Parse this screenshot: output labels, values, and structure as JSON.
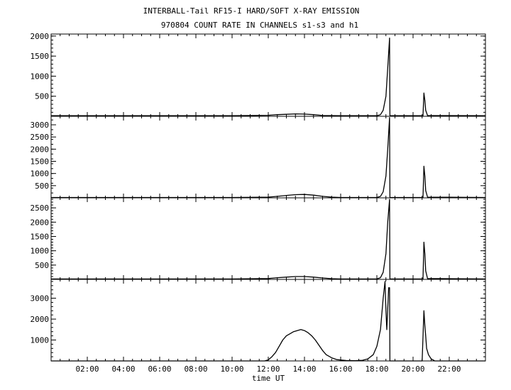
{
  "chart_data": {
    "type": "line",
    "title": "INTERBALL-Tail RF15-I HARD/SOFT X-RAY EMISSION",
    "subtitle": "970804  COUNT RATE IN CHANNELS s1-s3 and h1",
    "xlabel": "time UT",
    "x_unit": "hours UT",
    "xlim": [
      0,
      24
    ],
    "x_ticks": [
      {
        "value": 2,
        "label": "02:00"
      },
      {
        "value": 4,
        "label": "04:00"
      },
      {
        "value": 6,
        "label": "06:00"
      },
      {
        "value": 8,
        "label": "08:00"
      },
      {
        "value": 10,
        "label": "10:00"
      },
      {
        "value": 12,
        "label": "12:00"
      },
      {
        "value": 14,
        "label": "14:00"
      },
      {
        "value": 16,
        "label": "16:00"
      },
      {
        "value": 18,
        "label": "18:00"
      },
      {
        "value": 20,
        "label": "20:00"
      },
      {
        "value": 22,
        "label": "22:00"
      }
    ],
    "panels": [
      {
        "ylim": [
          0,
          2050
        ],
        "y_ticks": [
          500,
          1000,
          1500,
          2000
        ],
        "series": [
          {
            "points": [
              [
                0,
                15
              ],
              [
                10,
                15
              ],
              [
                12.0,
                25
              ],
              [
                12.5,
                40
              ],
              [
                13.0,
                50
              ],
              [
                13.5,
                60
              ],
              [
                14.0,
                55
              ],
              [
                14.5,
                40
              ],
              [
                15.0,
                20
              ],
              [
                16,
                15
              ],
              [
                18.0,
                15
              ],
              [
                18.2,
                40
              ],
              [
                18.35,
                150
              ],
              [
                18.5,
                500
              ],
              [
                18.6,
                1200
              ],
              [
                18.7,
                1950
              ],
              [
                18.72,
                15
              ],
              [
                20.5,
                15
              ],
              [
                20.55,
                15
              ],
              [
                20.6,
                580
              ],
              [
                20.65,
                400
              ],
              [
                20.7,
                150
              ],
              [
                20.8,
                20
              ],
              [
                24,
                15
              ]
            ]
          }
        ]
      },
      {
        "ylim": [
          0,
          3350
        ],
        "y_ticks": [
          500,
          1000,
          1500,
          2000,
          2500,
          3000
        ],
        "series": [
          {
            "points": [
              [
                0,
                15
              ],
              [
                10,
                15
              ],
              [
                12.0,
                30
              ],
              [
                12.5,
                60
              ],
              [
                13.0,
                100
              ],
              [
                13.5,
                130
              ],
              [
                14.0,
                140
              ],
              [
                14.5,
                110
              ],
              [
                15.0,
                60
              ],
              [
                15.5,
                30
              ],
              [
                16,
                15
              ],
              [
                18.0,
                15
              ],
              [
                18.2,
                60
              ],
              [
                18.35,
                250
              ],
              [
                18.5,
                900
              ],
              [
                18.6,
                2000
              ],
              [
                18.7,
                3300
              ],
              [
                18.72,
                15
              ],
              [
                20.5,
                15
              ],
              [
                20.55,
                15
              ],
              [
                20.6,
                1300
              ],
              [
                20.65,
                900
              ],
              [
                20.7,
                300
              ],
              [
                20.8,
                30
              ],
              [
                24,
                15
              ]
            ]
          }
        ]
      },
      {
        "ylim": [
          0,
          2850
        ],
        "y_ticks": [
          500,
          1000,
          1500,
          2000,
          2500
        ],
        "series": [
          {
            "points": [
              [
                0,
                15
              ],
              [
                10,
                15
              ],
              [
                12.0,
                30
              ],
              [
                12.5,
                60
              ],
              [
                13.0,
                80
              ],
              [
                13.5,
                100
              ],
              [
                14.0,
                100
              ],
              [
                14.5,
                80
              ],
              [
                15.0,
                50
              ],
              [
                15.5,
                25
              ],
              [
                16,
                15
              ],
              [
                18.0,
                15
              ],
              [
                18.2,
                60
              ],
              [
                18.35,
                250
              ],
              [
                18.5,
                900
              ],
              [
                18.6,
                2000
              ],
              [
                18.7,
                2800
              ],
              [
                18.72,
                15
              ],
              [
                20.5,
                15
              ],
              [
                20.55,
                15
              ],
              [
                20.6,
                1300
              ],
              [
                20.65,
                900
              ],
              [
                20.7,
                300
              ],
              [
                20.8,
                30
              ],
              [
                24,
                15
              ]
            ]
          }
        ]
      },
      {
        "ylim": [
          0,
          3900
        ],
        "y_ticks": [
          1000,
          2000,
          3000
        ],
        "series": [
          {
            "points": [
              [
                0,
                0
              ],
              [
                11.8,
                0
              ],
              [
                12.0,
                50
              ],
              [
                12.2,
                200
              ],
              [
                12.4,
                400
              ],
              [
                12.6,
                700
              ],
              [
                12.8,
                1000
              ],
              [
                13.0,
                1200
              ],
              [
                13.2,
                1300
              ],
              [
                13.4,
                1400
              ],
              [
                13.6,
                1450
              ],
              [
                13.8,
                1500
              ],
              [
                14.0,
                1450
              ],
              [
                14.2,
                1350
              ],
              [
                14.4,
                1200
              ],
              [
                14.6,
                1000
              ],
              [
                14.8,
                750
              ],
              [
                15.0,
                500
              ],
              [
                15.2,
                300
              ],
              [
                15.5,
                150
              ],
              [
                15.8,
                60
              ],
              [
                16.3,
                20
              ],
              [
                16.8,
                10
              ],
              [
                17.2,
                30
              ],
              [
                17.5,
                100
              ],
              [
                17.8,
                300
              ],
              [
                18.0,
                700
              ],
              [
                18.2,
                1500
              ],
              [
                18.35,
                3000
              ],
              [
                18.45,
                3800
              ],
              [
                18.5,
                2400
              ],
              [
                18.55,
                1500
              ],
              [
                18.65,
                3500
              ],
              [
                18.7,
                3500
              ],
              [
                18.72,
                0
              ],
              [
                20.5,
                0
              ],
              [
                20.6,
                2400
              ],
              [
                20.65,
                1700
              ],
              [
                20.7,
                1200
              ],
              [
                20.75,
                600
              ],
              [
                20.85,
                300
              ],
              [
                21.0,
                100
              ],
              [
                21.2,
                0
              ],
              [
                24,
                0
              ]
            ]
          }
        ]
      }
    ]
  }
}
